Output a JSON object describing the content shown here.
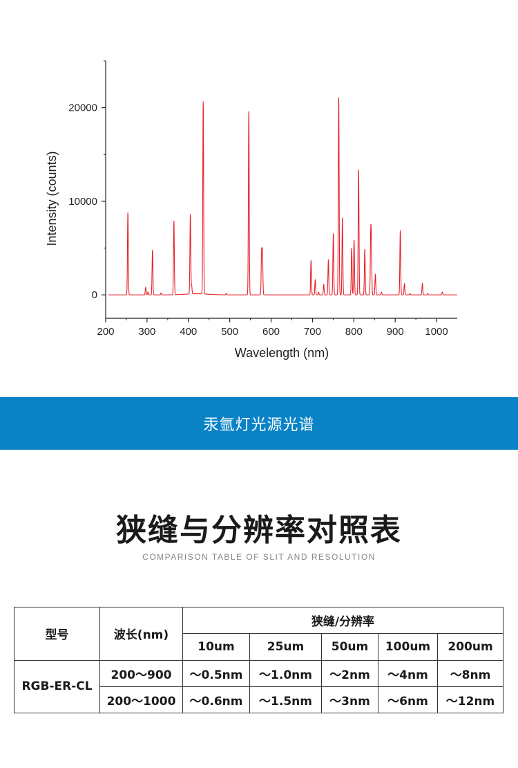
{
  "chart_data": {
    "type": "line",
    "title": "",
    "xlabel": "Wavelength (nm)",
    "ylabel": "Intensity (counts)",
    "xlim": [
      200,
      1050
    ],
    "ylim": [
      -2500,
      25000
    ],
    "xticks": [
      "200",
      "300",
      "400",
      "500",
      "600",
      "700",
      "800",
      "900",
      "1000"
    ],
    "yticks": [
      "0",
      "10000",
      "20000"
    ],
    "grid": false,
    "legend": "none",
    "series": [
      {
        "color": "#e8202a",
        "baseline": 0,
        "peaks": [
          {
            "x": 253.7,
            "y": 8800
          },
          {
            "x": 296.7,
            "y": 800
          },
          {
            "x": 302.2,
            "y": 300
          },
          {
            "x": 313.2,
            "y": 4800
          },
          {
            "x": 334.1,
            "y": 200
          },
          {
            "x": 365.0,
            "y": 7900
          },
          {
            "x": 404.7,
            "y": 8500
          },
          {
            "x": 407.8,
            "y": 900
          },
          {
            "x": 435.8,
            "y": 20600
          },
          {
            "x": 491.6,
            "y": 150
          },
          {
            "x": 546.1,
            "y": 19700
          },
          {
            "x": 576.96,
            "y": 4300
          },
          {
            "x": 579.07,
            "y": 4400
          },
          {
            "x": 696.5,
            "y": 3700
          },
          {
            "x": 706.7,
            "y": 1600
          },
          {
            "x": 714.7,
            "y": 300
          },
          {
            "x": 727.3,
            "y": 1100
          },
          {
            "x": 738.4,
            "y": 3700
          },
          {
            "x": 750.4,
            "y": 6600
          },
          {
            "x": 763.5,
            "y": 21100
          },
          {
            "x": 772.4,
            "y": 8300
          },
          {
            "x": 794.8,
            "y": 5000
          },
          {
            "x": 800.6,
            "y": 5900
          },
          {
            "x": 811.5,
            "y": 13400
          },
          {
            "x": 826.5,
            "y": 4900
          },
          {
            "x": 840.8,
            "y": 6100
          },
          {
            "x": 842.5,
            "y": 4500
          },
          {
            "x": 852.1,
            "y": 2200
          },
          {
            "x": 866.8,
            "y": 300
          },
          {
            "x": 912.3,
            "y": 6900
          },
          {
            "x": 922.4,
            "y": 1200
          },
          {
            "x": 935.4,
            "y": 150
          },
          {
            "x": 965.8,
            "y": 1200
          },
          {
            "x": 978.5,
            "y": 150
          },
          {
            "x": 1013.9,
            "y": 300
          }
        ]
      }
    ]
  },
  "banner": {
    "text": "汞氩灯光源光谱"
  },
  "section": {
    "title": "狭缝与分辨率对照表",
    "subtitle": "COMPARISON TABLE OF SLIT AND RESOLUTION"
  },
  "table": {
    "model_header": "型号",
    "wavelength_header": "波长(nm)",
    "slit_header": "狭缝/分辨率",
    "slits": [
      "10um",
      "25um",
      "50um",
      "100um",
      "200um"
    ],
    "model": "RGB-ER-CL",
    "rows": [
      {
        "wavelength": "200～900",
        "values": [
          "～0.5nm",
          "～1.0nm",
          "～2nm",
          "～4nm",
          "～8nm"
        ]
      },
      {
        "wavelength": "200～1000",
        "values": [
          "～0.6nm",
          "～1.5nm",
          "～3nm",
          "～6nm",
          "～12nm"
        ]
      }
    ]
  }
}
